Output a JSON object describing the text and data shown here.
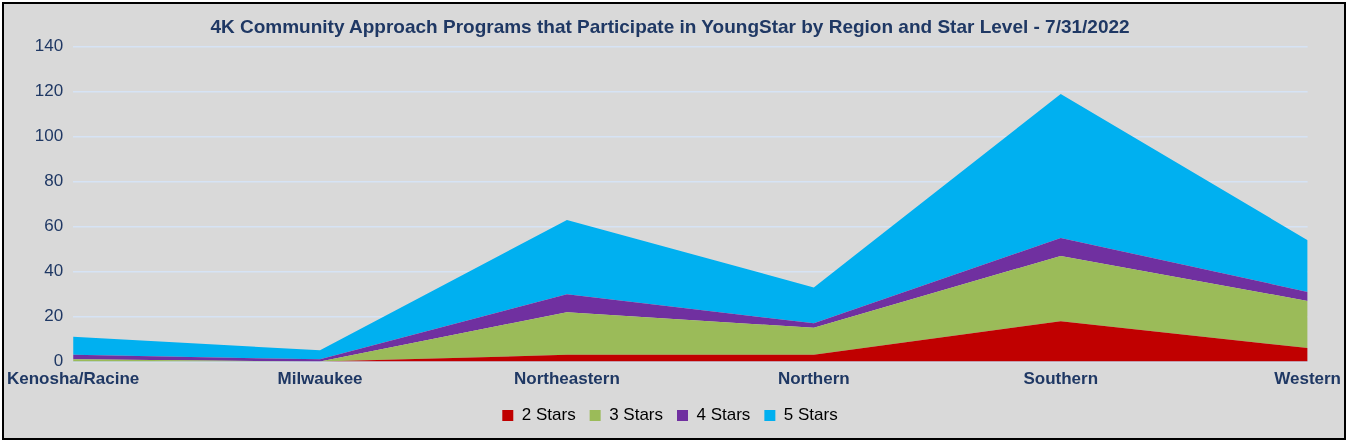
{
  "chart_data": {
    "type": "area",
    "title": "4K Community Approach Programs that Participate in YoungStar by Region and Star Level - 7/31/2022",
    "categories": [
      "Kenosha/Racine",
      "Milwaukee",
      "Northeastern",
      "Northern",
      "Southern",
      "Western"
    ],
    "stacked": true,
    "ylim": [
      0,
      140
    ],
    "yticks": [
      0,
      20,
      40,
      60,
      80,
      100,
      120,
      140
    ],
    "grid": "y",
    "legend": "bottom",
    "series": [
      {
        "name": "2 Stars",
        "color": "#c00000",
        "values": [
          0,
          0,
          3,
          3,
          18,
          6
        ]
      },
      {
        "name": "3 Stars",
        "color": "#9bbb59",
        "values": [
          1,
          0,
          19,
          12,
          29,
          21
        ]
      },
      {
        "name": "4 Stars",
        "color": "#7030a0",
        "values": [
          2,
          1,
          8,
          2,
          8,
          4
        ]
      },
      {
        "name": "5 Stars",
        "color": "#00b0f0",
        "values": [
          8,
          4,
          33,
          16,
          64,
          23
        ]
      }
    ]
  }
}
